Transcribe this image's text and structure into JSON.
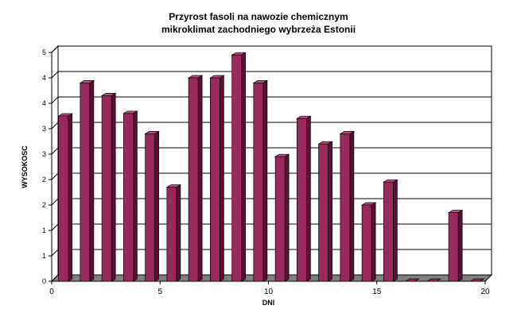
{
  "chart_data": {
    "type": "bar",
    "title": "Przyrost fasoli na nawozie chemicznym",
    "subtitle": "mikroklimat zachodniego wybrzeża Estonii",
    "xlabel": "DNI",
    "ylabel": "WYSOKOSC",
    "x": [
      1,
      2,
      3,
      4,
      5,
      6,
      7,
      8,
      9,
      10,
      11,
      12,
      13,
      14,
      15,
      16,
      17,
      18,
      19,
      20
    ],
    "values": [
      3.25,
      3.9,
      3.65,
      3.3,
      2.9,
      1.85,
      4.0,
      4.0,
      4.45,
      3.9,
      2.45,
      3.2,
      2.7,
      2.9,
      1.5,
      1.95,
      0,
      0,
      1.35,
      0
    ],
    "xlim": [
      0,
      20
    ],
    "ylim": [
      0,
      4.5
    ],
    "x_ticks": [
      "0",
      "5",
      "10",
      "15",
      "20"
    ],
    "y_ticks": [
      "0",
      "1",
      "1",
      "2",
      "2",
      "3",
      "3",
      "4",
      "4",
      "5"
    ],
    "grid": true,
    "style": "3d-bar",
    "colors": {
      "bar_front": "#9b2a5c",
      "bar_side": "#5c0f36",
      "bar_top": "#c0507f",
      "floor": "#808080",
      "wall": "#ffffff"
    }
  }
}
